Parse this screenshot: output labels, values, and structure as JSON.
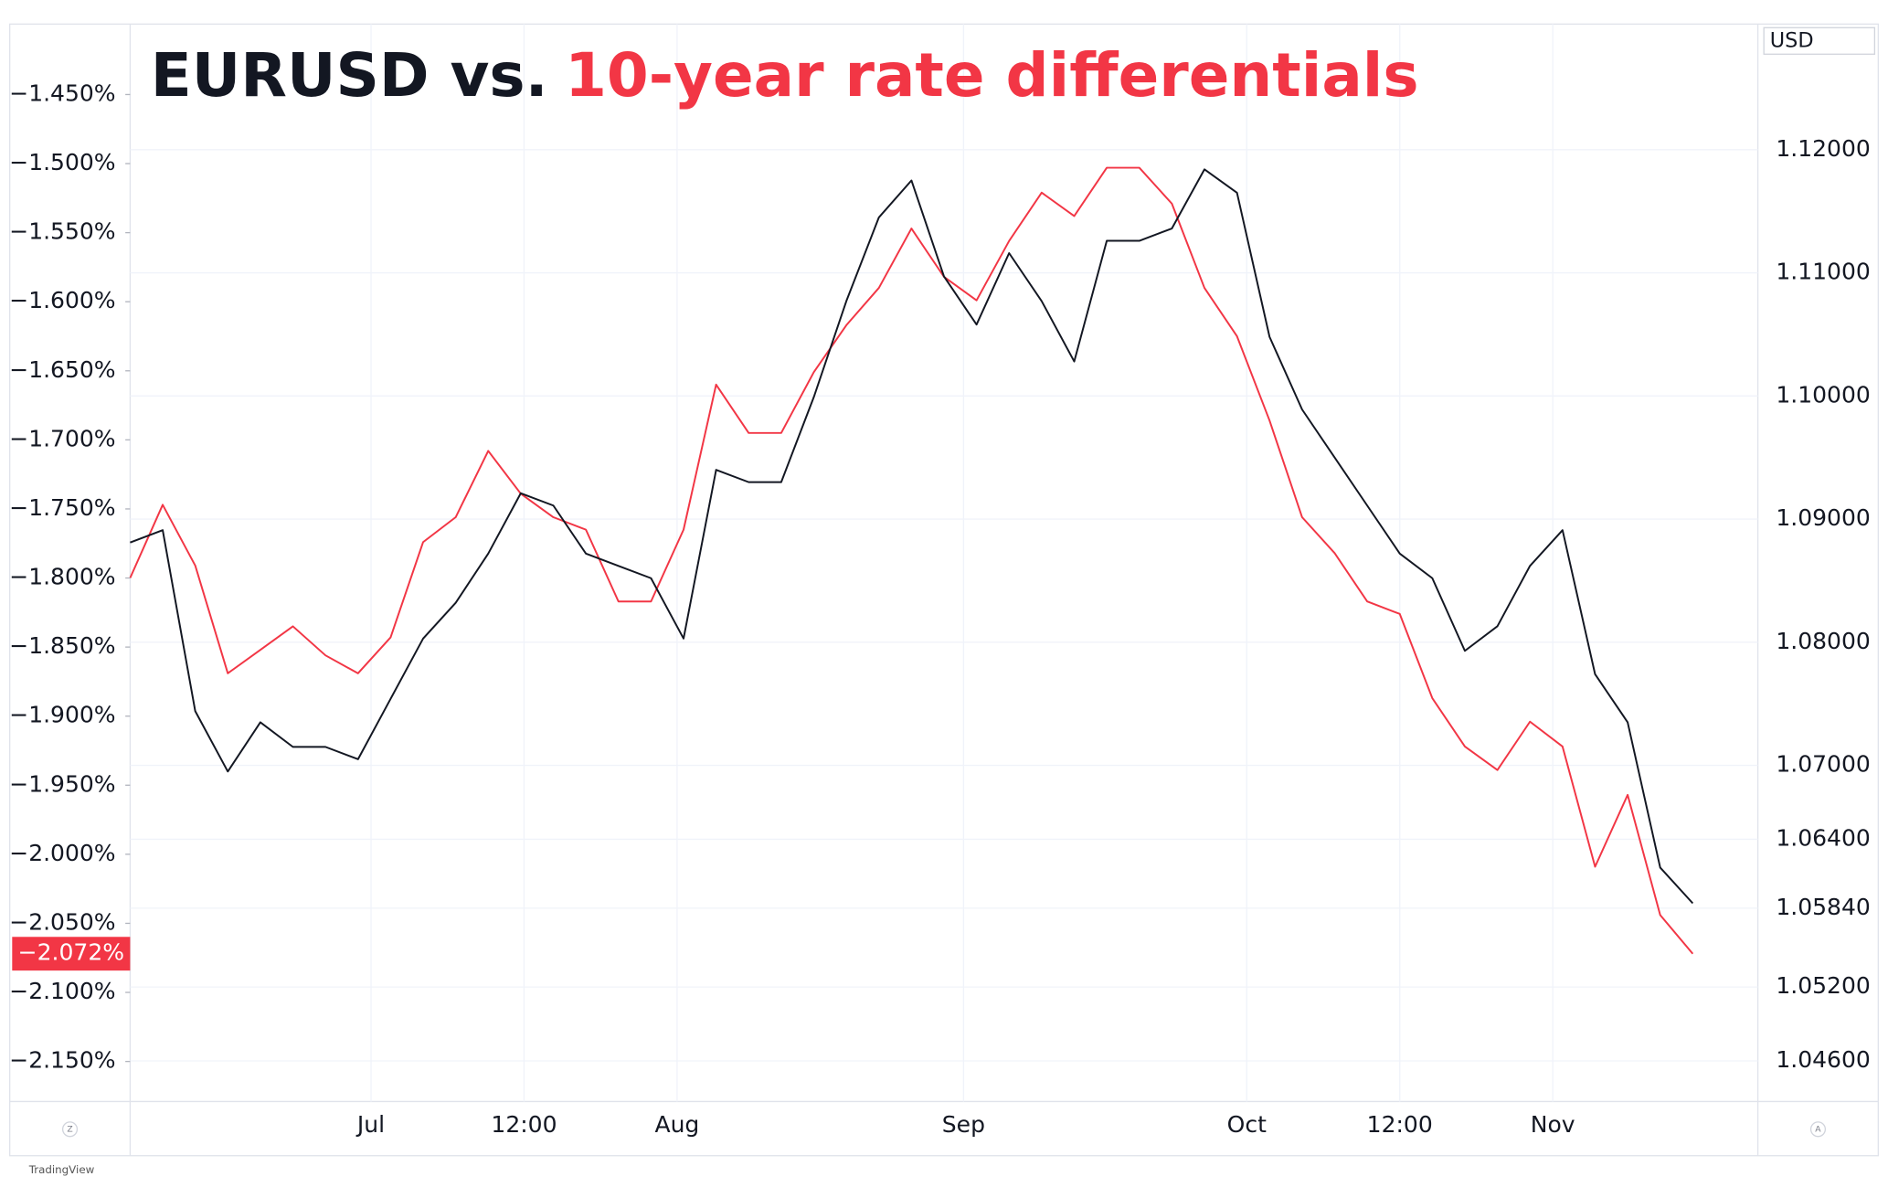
{
  "chart_data": {
    "type": "line",
    "title_parts": [
      "EURUSD vs.",
      "10-year rate differentials"
    ],
    "right_axis_unit": "USD",
    "brand": "TradingView",
    "corner_buttons": [
      "Z",
      "A"
    ],
    "x": [
      0,
      2,
      4,
      6,
      8,
      10,
      12,
      14,
      16,
      18,
      20,
      22,
      24,
      26,
      28,
      30,
      32,
      34,
      36,
      38,
      40,
      42,
      44,
      46,
      48,
      50,
      52,
      54,
      56,
      58,
      60,
      62,
      64,
      66,
      68,
      70,
      72,
      74,
      76,
      78,
      80,
      82,
      84,
      86,
      88,
      90,
      92,
      94,
      96
    ],
    "xlim": [
      0,
      100
    ],
    "xticks": [
      {
        "value": 14.8,
        "label": "Jul"
      },
      {
        "value": 24.2,
        "label": "12:00"
      },
      {
        "value": 33.6,
        "label": "Aug"
      },
      {
        "value": 51.2,
        "label": "Sep"
      },
      {
        "value": 68.6,
        "label": "Oct"
      },
      {
        "value": 78.0,
        "label": "12:00"
      },
      {
        "value": 87.4,
        "label": "Nov"
      }
    ],
    "ylim": [
      -2.179,
      -1.399
    ],
    "yticks": [
      {
        "value": -1.45,
        "label": "−1.450%"
      },
      {
        "value": -1.5,
        "label": "−1.500%"
      },
      {
        "value": -1.55,
        "label": "−1.550%"
      },
      {
        "value": -1.6,
        "label": "−1.600%"
      },
      {
        "value": -1.65,
        "label": "−1.650%"
      },
      {
        "value": -1.7,
        "label": "−1.700%"
      },
      {
        "value": -1.75,
        "label": "−1.750%"
      },
      {
        "value": -1.8,
        "label": "−1.800%"
      },
      {
        "value": -1.85,
        "label": "−1.850%"
      },
      {
        "value": -1.9,
        "label": "−1.900%"
      },
      {
        "value": -1.95,
        "label": "−1.950%"
      },
      {
        "value": -2.0,
        "label": "−2.000%"
      },
      {
        "value": -2.05,
        "label": "−2.050%"
      },
      {
        "value": -2.1,
        "label": "−2.100%"
      },
      {
        "value": -2.15,
        "label": "−2.150%"
      }
    ],
    "y2lim": [
      1.0427,
      1.1302
    ],
    "y2ticks": [
      {
        "value": 1.12,
        "label": "1.12000"
      },
      {
        "value": 1.11,
        "label": "1.11000"
      },
      {
        "value": 1.1,
        "label": "1.10000"
      },
      {
        "value": 1.09,
        "label": "1.09000"
      },
      {
        "value": 1.08,
        "label": "1.08000"
      },
      {
        "value": 1.07,
        "label": "1.07000"
      },
      {
        "value": 1.064,
        "label": "1.06400"
      },
      {
        "value": 1.0584,
        "label": "1.05840"
      },
      {
        "value": 1.052,
        "label": "1.05200"
      },
      {
        "value": 1.046,
        "label": "1.04600"
      }
    ],
    "grid": true,
    "last_value_label": {
      "value": -2.072,
      "label": "−2.072%"
    },
    "series": [
      {
        "name": "10-year rate differentials",
        "color": "#f23645",
        "axis": "y",
        "values": [
          -1.8,
          -1.747,
          -1.791,
          -1.869,
          -1.852,
          -1.835,
          -1.856,
          -1.869,
          -1.843,
          -1.774,
          -1.756,
          -1.708,
          -1.739,
          -1.756,
          -1.765,
          -1.817,
          -1.817,
          -1.765,
          -1.66,
          -1.695,
          -1.695,
          -1.651,
          -1.617,
          -1.59,
          -1.547,
          -1.582,
          -1.599,
          -1.556,
          -1.521,
          -1.538,
          -1.503,
          -1.503,
          -1.529,
          -1.59,
          -1.625,
          -1.686,
          -1.756,
          -1.782,
          -1.817,
          -1.826,
          -1.887,
          -1.922,
          -1.939,
          -1.904,
          -1.922,
          -2.009,
          -1.957,
          -2.044,
          -2.072
        ]
      },
      {
        "name": "EURUSD",
        "color": "#131722",
        "axis": "y2",
        "values": [
          1.0881,
          1.0891,
          1.0744,
          1.0695,
          1.0735,
          1.0715,
          1.0715,
          1.0705,
          1.0754,
          1.0803,
          1.0832,
          1.0872,
          1.0921,
          1.0911,
          1.0872,
          1.0862,
          1.0852,
          1.0803,
          1.094,
          1.093,
          1.093,
          1.0999,
          1.1077,
          1.1145,
          1.1175,
          1.1097,
          1.1058,
          1.1116,
          1.1077,
          1.1028,
          1.1126,
          1.1126,
          1.1136,
          1.1184,
          1.1165,
          1.1048,
          1.0989,
          1.095,
          1.0911,
          1.0872,
          1.0852,
          1.0793,
          1.0813,
          1.0862,
          1.0891,
          1.0774,
          1.0735,
          1.0617,
          1.0588
        ]
      }
    ]
  }
}
